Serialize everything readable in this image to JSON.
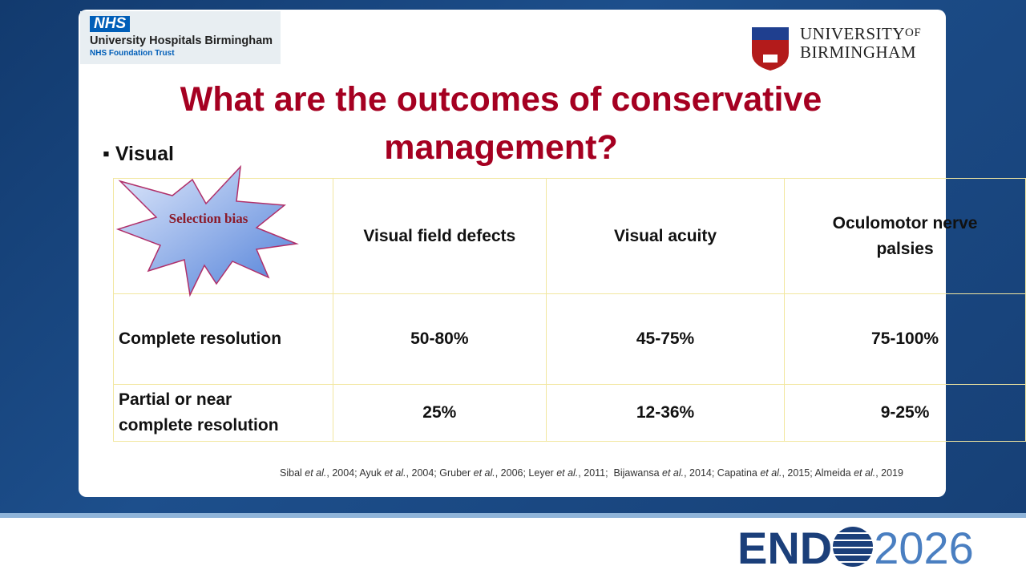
{
  "header": {
    "nhs_badge": "NHS",
    "nhs_org": "University Hospitals Birmingham",
    "nhs_trust": "NHS Foundation Trust",
    "uni_line1": "UNIVERSITY",
    "uni_of": "OF",
    "uni_line2": "BIRMINGHAM"
  },
  "title": "What are the outcomes of conservative management?",
  "bullet": "Visual",
  "starburst": "Selection bias",
  "table": {
    "header": [
      "Visual field defects",
      "Visual acuity",
      "Oculomotor nerve palsies"
    ],
    "rows": [
      [
        "Complete resolution",
        "50-80%",
        "45-75%",
        "75-100%"
      ],
      [
        "Partial or near complete resolution",
        "25%",
        "12-36%",
        "9-25%"
      ]
    ]
  },
  "references": [
    "Sibal ",
    "et al.",
    ", 2004; Ayuk ",
    "et al.",
    ", 2004; Gruber ",
    "et al.",
    ", 2006; Leyer ",
    "et al.",
    ", 2011;  Bijawansa ",
    "et al.",
    ", 2014; Capatina ",
    "et al.",
    ", 2015; Almeida ",
    "et al.",
    ", 2019"
  ],
  "footer": {
    "logo_left": "END",
    "logo_right": "2026"
  }
}
